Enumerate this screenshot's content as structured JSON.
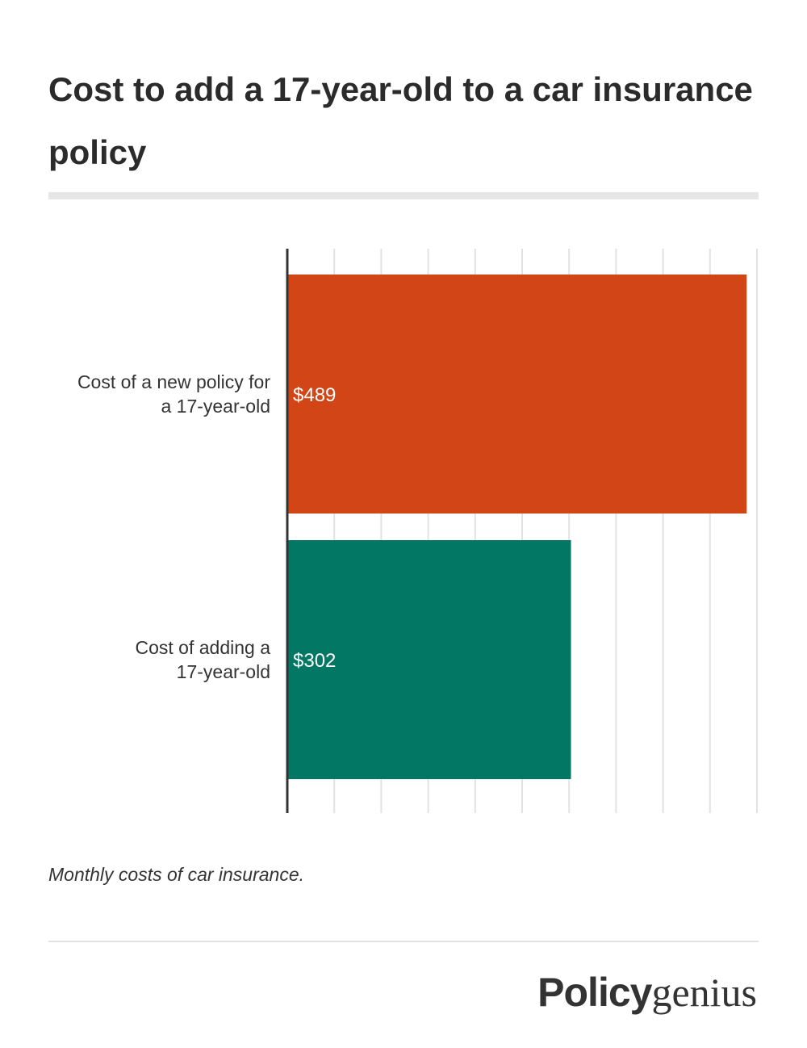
{
  "chart_data": {
    "type": "bar",
    "orientation": "horizontal",
    "title": "Cost to add a 17-year-old to a car insurance policy",
    "categories": [
      "Cost of a new policy for a 17-year-old",
      "Cost of adding a 17-year-old"
    ],
    "values": [
      489,
      302
    ],
    "value_labels": [
      "$489",
      "$302"
    ],
    "bar_colors": [
      "#d24516",
      "#027763"
    ],
    "xlim": [
      0,
      500
    ],
    "grid": true,
    "annotation": "Monthly costs of car insurance."
  },
  "brand": {
    "part1": "Policy",
    "part2": "genius"
  }
}
